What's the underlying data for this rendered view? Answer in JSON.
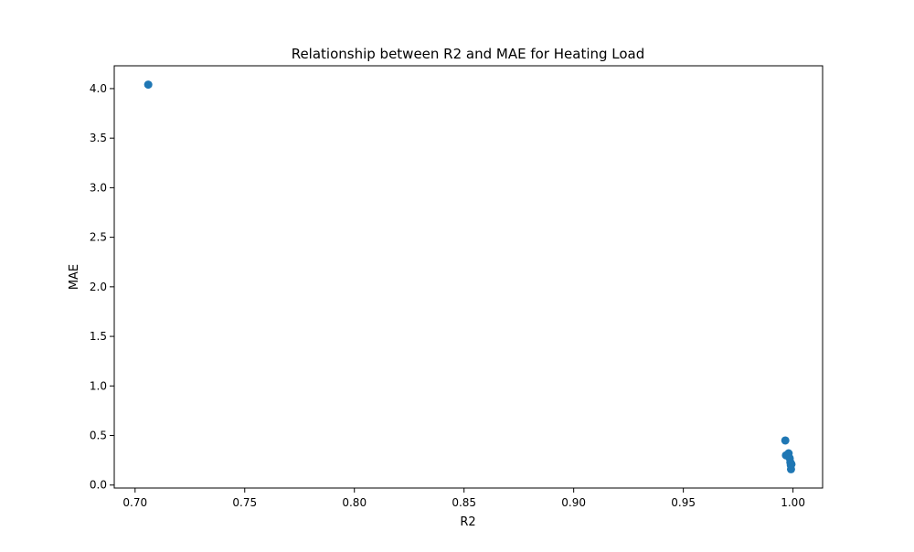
{
  "chart_data": {
    "type": "scatter",
    "title": "Relationship between R2 and MAE for Heating Load",
    "xlabel": "R2",
    "ylabel": "MAE",
    "xlim": [
      0.6905,
      1.0135
    ],
    "ylim": [
      -0.03,
      4.23
    ],
    "xticks": [
      0.7,
      0.75,
      0.8,
      0.85,
      0.9,
      0.95,
      1.0
    ],
    "xtick_labels": [
      "0.70",
      "0.75",
      "0.80",
      "0.85",
      "0.90",
      "0.95",
      "1.00"
    ],
    "yticks": [
      0.0,
      0.5,
      1.0,
      1.5,
      2.0,
      2.5,
      3.0,
      3.5,
      4.0
    ],
    "ytick_labels": [
      "0.0",
      "0.5",
      "1.0",
      "1.5",
      "2.0",
      "2.5",
      "3.0",
      "3.5",
      "4.0"
    ],
    "grid": false,
    "color": "#1f77b4",
    "points": [
      {
        "x": 0.706,
        "y": 4.04
      },
      {
        "x": 0.9965,
        "y": 0.45
      },
      {
        "x": 0.9968,
        "y": 0.3
      },
      {
        "x": 0.998,
        "y": 0.32
      },
      {
        "x": 0.9985,
        "y": 0.27
      },
      {
        "x": 0.9988,
        "y": 0.23
      },
      {
        "x": 0.999,
        "y": 0.2
      },
      {
        "x": 0.9991,
        "y": 0.16
      },
      {
        "x": 0.9993,
        "y": 0.21
      }
    ]
  }
}
